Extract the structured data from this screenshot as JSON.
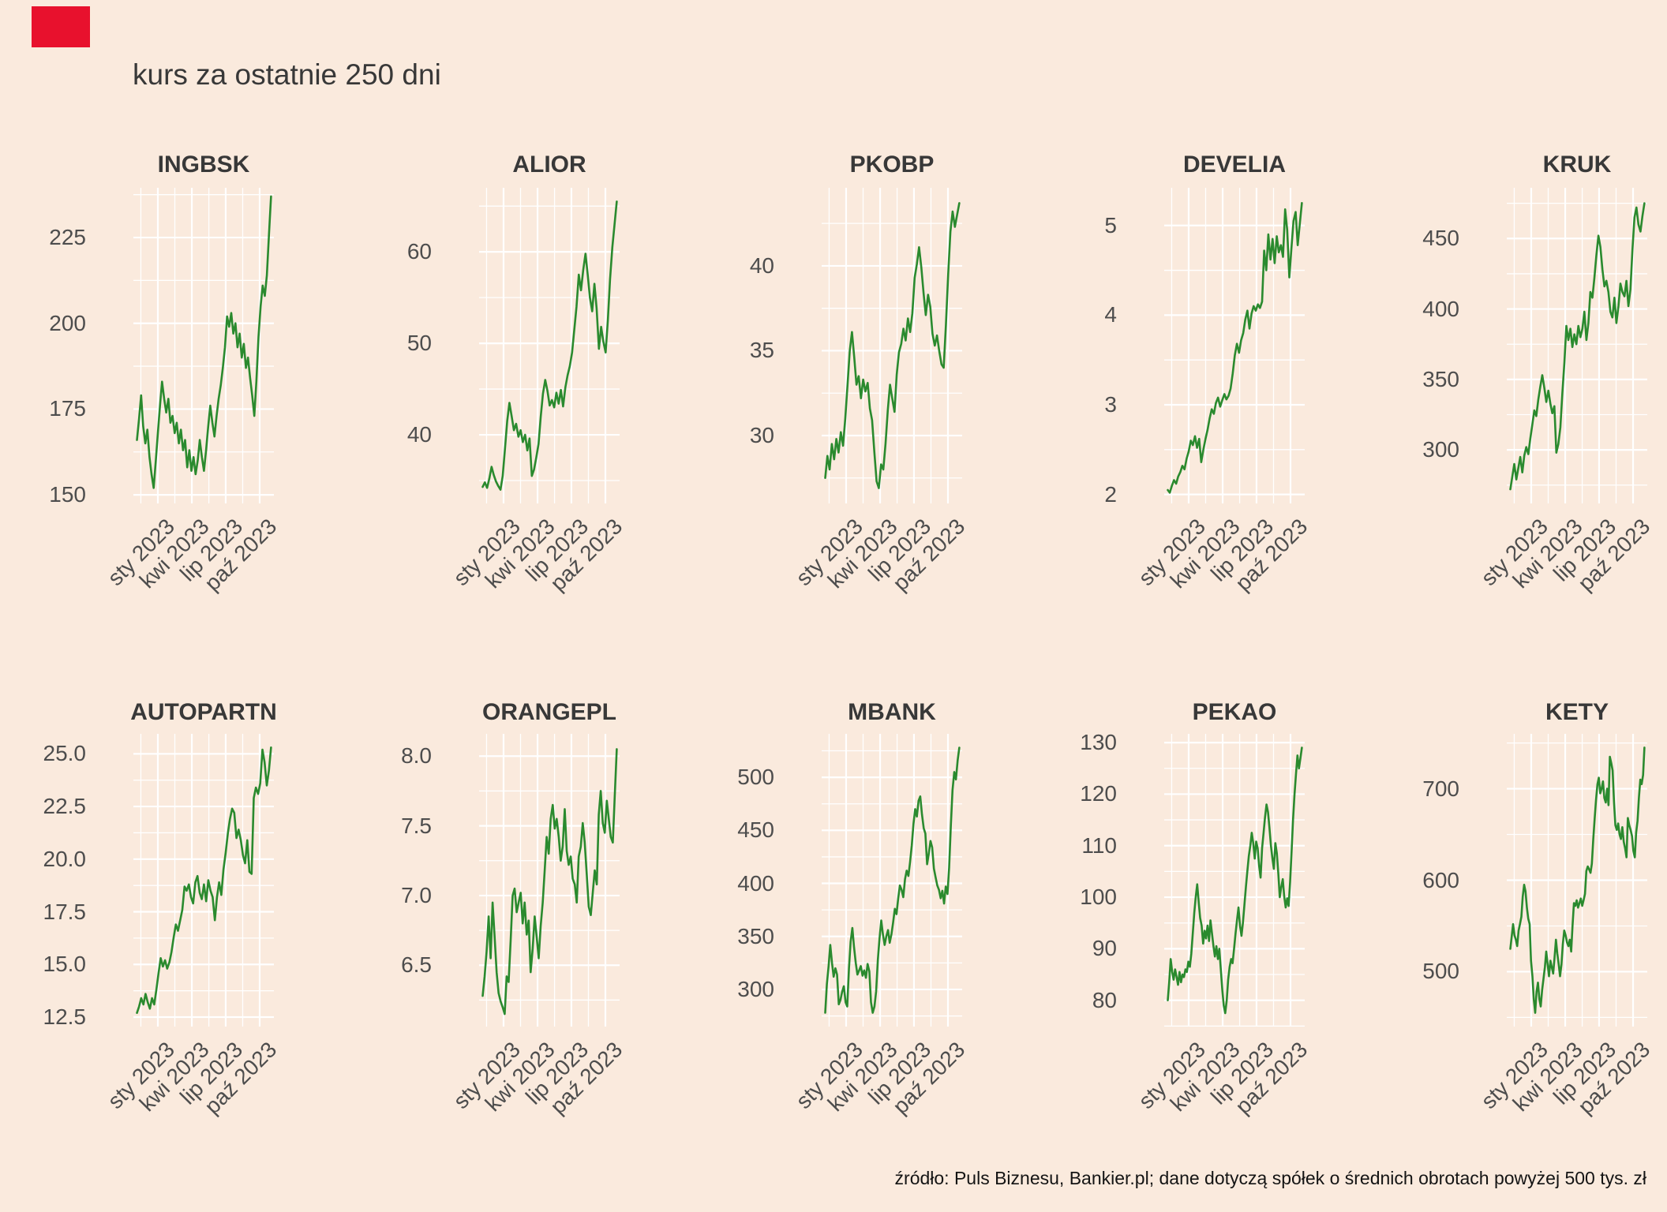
{
  "page_title": "kurs za ostatnie 250 dni",
  "source_note": "źródło: Puls Biznesu, Bankier.pl; dane dotyczą spółek o średnich obrotach powyżej 500 tys. zł",
  "colors": {
    "background": "#faeadd",
    "line": "#2a8a2e",
    "grid": "#ffffff",
    "panel_title": "#383838",
    "tick_text": "#4d4d4d",
    "marker": "#e8112d"
  },
  "x_axis": {
    "tick_labels": [
      "sty 2023",
      "kwi 2023",
      "lip 2023",
      "paź 2023"
    ]
  },
  "chart_data": [
    {
      "type": "line",
      "name": "INGBSK",
      "ylim": [
        147.5,
        239.5
      ],
      "yticks": [
        150,
        175,
        200,
        225
      ],
      "ytick_labels": [
        "150",
        "175",
        "200",
        "225"
      ],
      "values": [
        166,
        172,
        179,
        170,
        165,
        169,
        161,
        156,
        152,
        160,
        168,
        176,
        183,
        178,
        174,
        178,
        171,
        173,
        168,
        171,
        165,
        169,
        163,
        166,
        158,
        163,
        157,
        161,
        156,
        160,
        166,
        161,
        157,
        163,
        170,
        176,
        171,
        167,
        173,
        178,
        182,
        187,
        193,
        202,
        199,
        203,
        197,
        200,
        193,
        197,
        190,
        194,
        187,
        190,
        184,
        179,
        173,
        183,
        196,
        205,
        211,
        208,
        214,
        226,
        237
      ]
    },
    {
      "type": "line",
      "name": "ALIOR",
      "ylim": [
        32.5,
        67
      ],
      "yticks": [
        40,
        50,
        60
      ],
      "ytick_labels": [
        "40",
        "50",
        "60"
      ],
      "values": [
        34.3,
        34.8,
        34.2,
        35.2,
        36.5,
        35.6,
        34.9,
        34.4,
        34.0,
        35.5,
        38.5,
        41.5,
        43.5,
        42.0,
        40.5,
        41.2,
        39.8,
        40.5,
        39.2,
        40.0,
        38.3,
        39.6,
        35.5,
        36.2,
        37.5,
        39.0,
        42.0,
        44.5,
        46.0,
        44.8,
        43.2,
        43.8,
        43.0,
        44.6,
        43.4,
        44.9,
        43.1,
        45.2,
        46.5,
        47.5,
        49.0,
        51.5,
        54.0,
        57.5,
        55.8,
        58.0,
        59.8,
        57.5,
        55.0,
        53.5,
        56.5,
        53.8,
        49.4,
        51.8,
        50.2,
        49.0,
        52.5,
        57.0,
        60.5,
        63.0,
        65.5
      ]
    },
    {
      "type": "line",
      "name": "PKOBP",
      "ylim": [
        26,
        44.6
      ],
      "yticks": [
        30,
        35,
        40
      ],
      "ytick_labels": [
        "30",
        "35",
        "40"
      ],
      "values": [
        27.5,
        28.8,
        28.0,
        29.5,
        28.6,
        29.8,
        29.0,
        30.2,
        29.4,
        31.0,
        33.0,
        35.0,
        36.1,
        34.6,
        33.0,
        33.5,
        32.2,
        33.3,
        32.6,
        33.1,
        31.6,
        30.9,
        29.0,
        27.3,
        26.9,
        28.3,
        28.0,
        29.5,
        31.5,
        33.0,
        32.2,
        31.4,
        33.6,
        34.9,
        35.4,
        36.3,
        35.6,
        36.9,
        36.1,
        37.2,
        39.3,
        40.1,
        41.1,
        39.9,
        38.4,
        37.1,
        38.3,
        37.6,
        36.0,
        35.3,
        35.9,
        35.0,
        34.2,
        34.0,
        36.5,
        39.5,
        42.0,
        43.2,
        42.3,
        43.0,
        43.7
      ]
    },
    {
      "type": "line",
      "name": "DEVELIA",
      "ylim": [
        1.9,
        5.42
      ],
      "yticks": [
        2,
        3,
        4,
        5
      ],
      "ytick_labels": [
        "2",
        "3",
        "4",
        "5"
      ],
      "values": [
        2.05,
        2.02,
        2.1,
        2.16,
        2.12,
        2.2,
        2.25,
        2.32,
        2.28,
        2.4,
        2.48,
        2.6,
        2.55,
        2.65,
        2.52,
        2.62,
        2.36,
        2.5,
        2.62,
        2.72,
        2.85,
        2.95,
        2.9,
        3.02,
        3.08,
        2.98,
        3.05,
        3.12,
        3.06,
        3.1,
        3.18,
        3.35,
        3.55,
        3.68,
        3.58,
        3.72,
        3.8,
        3.95,
        4.05,
        3.85,
        4.02,
        4.1,
        4.05,
        4.12,
        4.08,
        4.15,
        4.72,
        4.5,
        4.9,
        4.62,
        4.85,
        4.58,
        4.88,
        4.7,
        4.78,
        4.65,
        5.18,
        4.95,
        4.42,
        4.75,
        5.05,
        5.15,
        4.78,
        5.02,
        5.25
      ]
    },
    {
      "type": "line",
      "name": "KRUK",
      "ylim": [
        262,
        486
      ],
      "yticks": [
        300,
        350,
        400,
        450
      ],
      "ytick_labels": [
        "300",
        "350",
        "400",
        "450"
      ],
      "values": [
        272,
        281,
        290,
        279,
        287,
        295,
        284,
        296,
        302,
        297,
        308,
        318,
        328,
        324,
        336,
        345,
        353,
        344,
        334,
        342,
        333,
        326,
        331,
        298,
        304,
        316,
        340,
        362,
        388,
        378,
        386,
        373,
        382,
        375,
        388,
        380,
        386,
        398,
        378,
        390,
        412,
        408,
        422,
        438,
        452,
        444,
        428,
        416,
        420,
        412,
        398,
        394,
        408,
        390,
        402,
        418,
        412,
        409,
        420,
        402,
        414,
        442,
        465,
        472,
        460,
        455,
        466,
        475
      ]
    },
    {
      "type": "line",
      "name": "AUTOPARTN",
      "ylim": [
        12.05,
        25.95
      ],
      "yticks": [
        12.5,
        15.0,
        17.5,
        20.0,
        22.5,
        25.0
      ],
      "ytick_labels": [
        "12.5",
        "15.0",
        "17.5",
        "20.0",
        "22.5",
        "25.0"
      ],
      "values": [
        12.7,
        13.0,
        13.4,
        13.1,
        13.6,
        13.2,
        12.9,
        13.4,
        13.1,
        13.8,
        14.6,
        15.3,
        14.9,
        15.2,
        14.8,
        15.1,
        15.6,
        16.3,
        16.9,
        16.6,
        17.1,
        17.6,
        18.7,
        18.5,
        18.8,
        18.2,
        17.9,
        18.9,
        19.2,
        18.4,
        18.1,
        18.8,
        18.0,
        19.0,
        18.5,
        18.2,
        17.1,
        18.2,
        18.9,
        18.3,
        19.5,
        20.3,
        21.2,
        21.9,
        22.4,
        22.2,
        21.0,
        21.4,
        20.9,
        20.2,
        19.8,
        20.9,
        19.4,
        19.3,
        22.9,
        23.4,
        23.1,
        23.6,
        25.2,
        24.6,
        23.5,
        24.2,
        25.3
      ]
    },
    {
      "type": "line",
      "name": "ORANGEPL",
      "ylim": [
        6.06,
        8.16
      ],
      "yticks": [
        6.5,
        7.0,
        7.5,
        8.0
      ],
      "ytick_labels": [
        "6.5",
        "7.0",
        "7.5",
        "8.0"
      ],
      "values": [
        6.28,
        6.42,
        6.6,
        6.85,
        6.55,
        6.95,
        6.7,
        6.45,
        6.3,
        6.24,
        6.2,
        6.15,
        6.42,
        6.38,
        6.68,
        7.0,
        7.05,
        6.88,
        6.95,
        7.02,
        6.8,
        6.95,
        6.72,
        6.82,
        6.45,
        6.62,
        6.85,
        6.7,
        6.55,
        6.78,
        6.95,
        7.18,
        7.42,
        7.3,
        7.55,
        7.65,
        7.48,
        7.55,
        7.42,
        7.25,
        7.35,
        7.62,
        7.32,
        7.22,
        7.28,
        7.12,
        7.08,
        6.95,
        7.28,
        7.35,
        7.52,
        7.38,
        7.15,
        6.92,
        6.86,
        7.02,
        7.18,
        7.08,
        7.58,
        7.75,
        7.52,
        7.45,
        7.68,
        7.55,
        7.42,
        7.38,
        7.72,
        8.05
      ]
    },
    {
      "type": "line",
      "name": "MBANK",
      "ylim": [
        265,
        541
      ],
      "yticks": [
        300,
        350,
        400,
        450,
        500
      ],
      "ytick_labels": [
        "300",
        "350",
        "400",
        "450",
        "500"
      ],
      "values": [
        278,
        305,
        322,
        342,
        325,
        312,
        320,
        314,
        286,
        290,
        298,
        303,
        288,
        284,
        320,
        345,
        358,
        340,
        325,
        314,
        318,
        322,
        313,
        318,
        311,
        324,
        317,
        288,
        278,
        284,
        298,
        328,
        348,
        365,
        352,
        342,
        350,
        356,
        344,
        352,
        363,
        376,
        371,
        386,
        398,
        394,
        387,
        404,
        412,
        407,
        420,
        436,
        456,
        470,
        463,
        478,
        482,
        465,
        452,
        447,
        418,
        428,
        440,
        434,
        414,
        406,
        398,
        394,
        386,
        393,
        381,
        397,
        390,
        415,
        455,
        488,
        505,
        498,
        516,
        528
      ]
    },
    {
      "type": "line",
      "name": "PEKAO",
      "ylim": [
        74.9,
        131.7
      ],
      "yticks": [
        80,
        90,
        100,
        110,
        120,
        130
      ],
      "ytick_labels": [
        "80",
        "90",
        "100",
        "110",
        "120",
        "130"
      ],
      "values": [
        80,
        83.5,
        88,
        85.5,
        84,
        86,
        84.5,
        83,
        85.5,
        83.5,
        85,
        84.5,
        86,
        85.5,
        87.5,
        86.5,
        89,
        93,
        97,
        100,
        102.5,
        99,
        96,
        94.5,
        91,
        93.5,
        92,
        94.5,
        91.5,
        95.5,
        93,
        90.5,
        88.5,
        90.5,
        88,
        90,
        86,
        82,
        79,
        77.5,
        80,
        84,
        86.5,
        88,
        87.2,
        90,
        93,
        95.5,
        98,
        94.5,
        92.5,
        95,
        98.5,
        102,
        105,
        108,
        110,
        112.5,
        110.5,
        107.5,
        110.8,
        109.5,
        106,
        103.8,
        109.5,
        112.5,
        115.5,
        118,
        116.5,
        113.5,
        110,
        107.5,
        105.5,
        110.5,
        108.5,
        104.5,
        100,
        102,
        103.5,
        100.2,
        98,
        99.8,
        98.3,
        103,
        109,
        115,
        120,
        124,
        127.5,
        125,
        127,
        129
      ]
    },
    {
      "type": "line",
      "name": "KETY",
      "ylim": [
        440,
        760
      ],
      "yticks": [
        500,
        600,
        700
      ],
      "ytick_labels": [
        "500",
        "600",
        "700"
      ],
      "values": [
        525,
        538,
        552,
        540,
        535,
        528,
        545,
        552,
        560,
        582,
        595,
        588,
        570,
        558,
        552,
        512,
        495,
        470,
        455,
        478,
        488,
        470,
        462,
        480,
        492,
        505,
        522,
        508,
        495,
        512,
        505,
        498,
        515,
        535,
        520,
        508,
        495,
        508,
        530,
        545,
        540,
        532,
        528,
        535,
        522,
        550,
        575,
        572,
        578,
        570,
        575,
        580,
        572,
        578,
        585,
        610,
        615,
        612,
        608,
        618,
        645,
        668,
        688,
        705,
        712,
        695,
        700,
        708,
        690,
        685,
        700,
        682,
        735,
        728,
        720,
        685,
        660,
        655,
        662,
        650,
        645,
        658,
        642,
        635,
        625,
        668,
        660,
        655,
        648,
        632,
        625,
        652,
        665,
        690,
        710,
        705,
        715,
        745
      ]
    }
  ],
  "layout_hints": {
    "grid": "on",
    "legend": "none",
    "facets": 10,
    "facet_cols": 5
  }
}
